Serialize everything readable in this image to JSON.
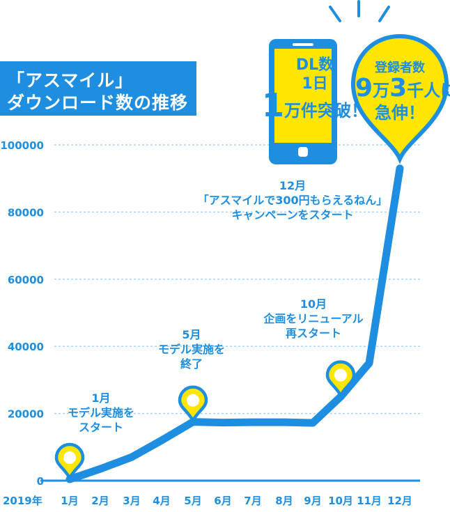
{
  "title": {
    "line1": "「アスマイル」",
    "line2": "ダウンロード数の推移"
  },
  "chart_data": {
    "type": "line",
    "year_label": "2019年",
    "categories": [
      "1月",
      "2月",
      "3月",
      "4月",
      "5月",
      "6月",
      "7月",
      "8月",
      "9月",
      "10月",
      "11月",
      "12月"
    ],
    "values": [
      0,
      3500,
      7000,
      12000,
      17500,
      17300,
      17400,
      17400,
      17200,
      25000,
      35000,
      93000
    ],
    "yticks": [
      "0",
      "20000",
      "40000",
      "60000",
      "80000",
      "100000"
    ],
    "ylim": [
      0,
      100000
    ],
    "grid": true,
    "colors": {
      "line": "#1e8ee0",
      "pin": "#ffe600",
      "grid": "#a8d4f0",
      "axis": "#1e8ee0"
    }
  },
  "annotations": [
    {
      "lines": [
        "1月",
        "モデル実施を",
        "スタート"
      ]
    },
    {
      "lines": [
        "5月",
        "モデル実施を",
        "終了"
      ]
    },
    {
      "lines": [
        "10月",
        "企画をリニューアル",
        "再スタート"
      ]
    },
    {
      "lines": [
        "12月",
        "「アスマイルで300円もらえるねん」",
        "キャンペーンをスタート"
      ]
    }
  ],
  "phone": {
    "line1": "DL数",
    "line2": "1日",
    "num": "1",
    "line3": "万件突破！"
  },
  "pin_callout": {
    "line1": "登録者数",
    "num1": "9",
    "unit1": "万",
    "num2": "3",
    "unit2": "千人に",
    "line3": "急伸！"
  }
}
